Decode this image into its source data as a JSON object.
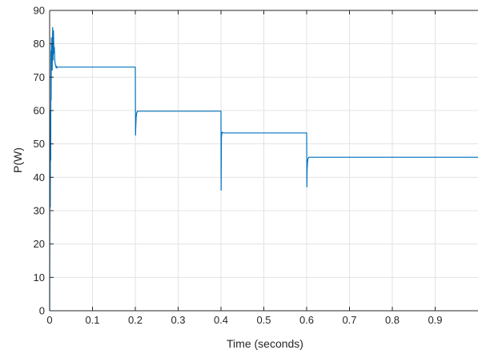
{
  "chart_data": {
    "type": "line",
    "title": "",
    "xlabel": "Time (seconds)",
    "ylabel": "P(W)",
    "xlim": [
      0,
      1
    ],
    "ylim": [
      0,
      90
    ],
    "xticks": [
      0,
      0.1,
      0.2,
      0.3,
      0.4,
      0.5,
      0.6,
      0.7,
      0.8,
      0.9
    ],
    "xtick_labels": [
      "0",
      "0.1",
      "0.2",
      "0.3",
      "0.4",
      "0.5",
      "0.6",
      "0.7",
      "0.8",
      "0.9"
    ],
    "yticks": [
      0,
      10,
      20,
      30,
      40,
      50,
      60,
      70,
      80,
      90
    ],
    "ytick_labels": [
      "0",
      "10",
      "20",
      "30",
      "40",
      "50",
      "60",
      "70",
      "80",
      "90"
    ],
    "grid": true,
    "legend": "none",
    "series": [
      {
        "color": "#0072BD",
        "x": [
          0,
          0.0005,
          0.001,
          0.0015,
          0.002,
          0.0025,
          0.003,
          0.0035,
          0.004,
          0.0045,
          0.005,
          0.006,
          0.007,
          0.008,
          0.009,
          0.01,
          0.011,
          0.012,
          0.013,
          0.014,
          0.015,
          0.016,
          0.017,
          0.018,
          0.02,
          0.03,
          0.2,
          0.2005,
          0.201,
          0.202,
          0.203,
          0.205,
          0.21,
          0.4,
          0.4003,
          0.4008,
          0.401,
          0.402,
          0.403,
          0.405,
          0.41,
          0.6,
          0.6005,
          0.601,
          0.602,
          0.603,
          0.605,
          0.61,
          1.0
        ],
        "y": [
          0,
          35,
          58,
          31,
          60,
          45,
          78,
          63,
          82,
          73,
          80,
          72,
          85,
          75,
          84,
          77,
          79,
          75,
          74,
          73.5,
          73,
          73.2,
          72.8,
          73,
          73,
          73,
          73,
          52.5,
          55,
          58,
          59.2,
          59.8,
          59.8,
          59.8,
          36,
          47,
          52,
          53.2,
          53.5,
          53.3,
          53.3,
          53.3,
          37,
          42,
          44.5,
          45.5,
          46,
          46,
          46
        ]
      }
    ]
  }
}
